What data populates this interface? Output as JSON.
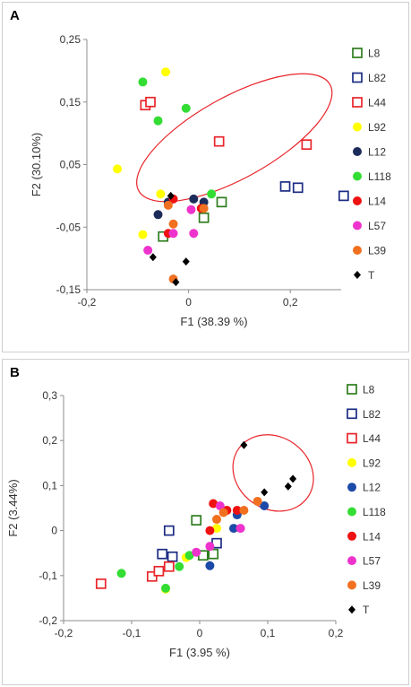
{
  "chart_data": [
    {
      "panel_label": "A",
      "type": "scatter",
      "xlabel": "F1 (38.39 %)",
      "ylabel": "F2 (30.10%)",
      "xlim": [
        -0.2,
        0.3
      ],
      "ylim": [
        -0.15,
        0.25
      ],
      "x_ticks": [
        "-0,2",
        "0",
        "0,2"
      ],
      "y_ticks": [
        "-0,15",
        "-0,05",
        "0,05",
        "0,15",
        "0,25"
      ],
      "grid": false,
      "legend_position": "right",
      "annotation": "ellipse enclosing L44, L92, L118 and L82 points",
      "ellipse": {
        "cx": 0.09,
        "cy": 0.093,
        "rx": 0.215,
        "ry": 0.065,
        "rotation_deg": 29,
        "color": "#e8252a"
      },
      "series": [
        {
          "name": "L8",
          "marker": "square-open",
          "color": "#2e7d1e",
          "points": [
            [
              0.065,
              -0.01
            ],
            [
              0.03,
              -0.035
            ],
            [
              -0.05,
              -0.065
            ]
          ]
        },
        {
          "name": "L82",
          "marker": "square-open",
          "color": "#1c2c84",
          "points": [
            [
              0.19,
              0.015
            ],
            [
              0.215,
              0.013
            ],
            [
              0.305,
              0.0
            ]
          ]
        },
        {
          "name": "L44",
          "marker": "square-open",
          "color": "#e8252a",
          "points": [
            [
              -0.085,
              0.145
            ],
            [
              -0.075,
              0.15
            ],
            [
              0.06,
              0.087
            ],
            [
              0.232,
              0.082
            ]
          ]
        },
        {
          "name": "L92",
          "marker": "circle",
          "color": "#ffff00",
          "points": [
            [
              -0.045,
              0.198
            ],
            [
              -0.14,
              0.043
            ],
            [
              -0.055,
              0.003
            ],
            [
              -0.09,
              -0.062
            ]
          ]
        },
        {
          "name": "L12",
          "marker": "circle",
          "color": "#1c2c5a",
          "points": [
            [
              -0.06,
              -0.03
            ],
            [
              0.01,
              -0.005
            ],
            [
              0.03,
              -0.01
            ],
            [
              -0.04,
              -0.01
            ]
          ]
        },
        {
          "name": "L118",
          "marker": "circle",
          "color": "#33dd33",
          "points": [
            [
              -0.09,
              0.182
            ],
            [
              -0.06,
              0.12
            ],
            [
              -0.005,
              0.14
            ],
            [
              0.045,
              0.003
            ]
          ]
        },
        {
          "name": "L14",
          "marker": "circle",
          "color": "#ee1111",
          "points": [
            [
              -0.03,
              -0.005
            ],
            [
              0.025,
              -0.02
            ],
            [
              -0.04,
              -0.06
            ]
          ]
        },
        {
          "name": "L57",
          "marker": "circle",
          "color": "#ee33cc",
          "points": [
            [
              0.005,
              -0.022
            ],
            [
              0.01,
              -0.06
            ],
            [
              -0.08,
              -0.087
            ],
            [
              -0.03,
              -0.06
            ]
          ]
        },
        {
          "name": "L39",
          "marker": "circle",
          "color": "#f07020",
          "points": [
            [
              -0.04,
              -0.015
            ],
            [
              -0.03,
              -0.045
            ],
            [
              -0.03,
              -0.133
            ],
            [
              0.03,
              -0.02
            ]
          ]
        },
        {
          "name": "T",
          "marker": "diamond",
          "color": "#000000",
          "points": [
            [
              -0.035,
              0.0
            ],
            [
              -0.07,
              -0.098
            ],
            [
              -0.005,
              -0.105
            ],
            [
              -0.025,
              -0.138
            ]
          ]
        }
      ]
    },
    {
      "panel_label": "B",
      "type": "scatter",
      "xlabel": "F1 (3.95 %)",
      "ylabel": "F2 (3.44%)",
      "xlim": [
        -0.2,
        0.2
      ],
      "ylim": [
        -0.2,
        0.3
      ],
      "x_ticks": [
        "-0,2",
        "-0,1",
        "0",
        "0,1",
        "0,2"
      ],
      "y_ticks": [
        "-0,2",
        "-0,1",
        "0",
        "0,1",
        "0,2",
        "0,3"
      ],
      "grid": false,
      "legend_position": "right",
      "annotation": "ellipse enclosing T points",
      "ellipse": {
        "cx": 0.108,
        "cy": 0.128,
        "rx": 0.062,
        "ry": 0.08,
        "rotation_deg": -35,
        "color": "#e8252a"
      },
      "series": [
        {
          "name": "L8",
          "marker": "square-open",
          "color": "#2e7d1e",
          "points": [
            [
              -0.005,
              0.023
            ],
            [
              0.005,
              -0.055
            ],
            [
              0.02,
              -0.052
            ]
          ]
        },
        {
          "name": "L82",
          "marker": "square-open",
          "color": "#1c2c84",
          "points": [
            [
              -0.045,
              0.0
            ],
            [
              -0.055,
              -0.052
            ],
            [
              -0.04,
              -0.058
            ],
            [
              0.025,
              -0.028
            ]
          ]
        },
        {
          "name": "L44",
          "marker": "square-open",
          "color": "#e8252a",
          "points": [
            [
              -0.145,
              -0.118
            ],
            [
              -0.07,
              -0.102
            ],
            [
              -0.06,
              -0.09
            ],
            [
              -0.045,
              -0.08
            ]
          ]
        },
        {
          "name": "L92",
          "marker": "circle",
          "color": "#ffff00",
          "points": [
            [
              -0.05,
              -0.13
            ],
            [
              -0.02,
              -0.06
            ],
            [
              0.025,
              0.005
            ]
          ]
        },
        {
          "name": "L12",
          "marker": "circle",
          "color": "#1c4aa8",
          "points": [
            [
              0.095,
              0.055
            ],
            [
              0.015,
              -0.078
            ],
            [
              0.05,
              0.005
            ],
            [
              0.055,
              0.035
            ]
          ]
        },
        {
          "name": "L118",
          "marker": "circle",
          "color": "#33dd33",
          "points": [
            [
              -0.115,
              -0.095
            ],
            [
              -0.03,
              -0.08
            ],
            [
              -0.05,
              -0.128
            ],
            [
              -0.015,
              -0.055
            ]
          ]
        },
        {
          "name": "L14",
          "marker": "circle",
          "color": "#ee1111",
          "points": [
            [
              0.02,
              0.06
            ],
            [
              0.015,
              0.0
            ],
            [
              0.04,
              0.045
            ],
            [
              0.055,
              0.045
            ]
          ]
        },
        {
          "name": "L57",
          "marker": "circle",
          "color": "#ee33cc",
          "points": [
            [
              0.03,
              0.055
            ],
            [
              0.015,
              -0.035
            ],
            [
              0.06,
              0.005
            ],
            [
              -0.005,
              -0.048
            ]
          ]
        },
        {
          "name": "L39",
          "marker": "circle",
          "color": "#f07020",
          "points": [
            [
              0.085,
              0.065
            ],
            [
              0.065,
              0.045
            ],
            [
              0.035,
              0.04
            ],
            [
              0.025,
              0.025
            ]
          ]
        },
        {
          "name": "T",
          "marker": "diamond",
          "color": "#000000",
          "points": [
            [
              0.065,
              0.19
            ],
            [
              0.095,
              0.085
            ],
            [
              0.13,
              0.098
            ],
            [
              0.137,
              0.115
            ]
          ]
        }
      ]
    }
  ]
}
